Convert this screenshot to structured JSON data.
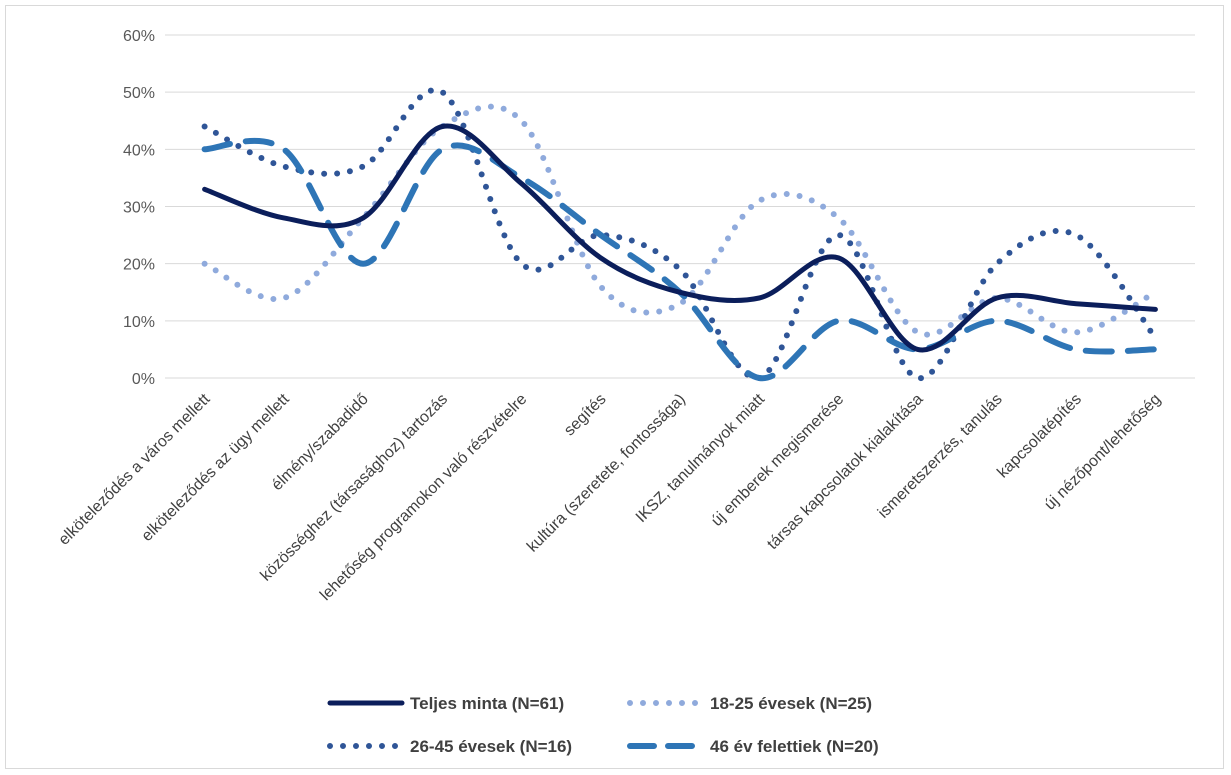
{
  "chart_data": {
    "type": "line",
    "title": "",
    "xlabel": "",
    "ylabel": "",
    "ylim": [
      0,
      60
    ],
    "y_tick_labels": [
      "0%",
      "10%",
      "20%",
      "30%",
      "40%",
      "50%",
      "60%"
    ],
    "grid": "horizontal",
    "legend_position": "bottom",
    "smoothed": true,
    "categories": [
      "elköteleződés a város mellett",
      "elköteleződés az ügy mellett",
      "élmény/szabadidő",
      "közösséghez (társasághoz) tartozás",
      "lehetőség programokon való részvételre",
      "segítés",
      "kultúra (szeretete, fontossága)",
      "IKSZ, tanulmányok miatt",
      "új emberek megismerése",
      "társas kapcsolatok kialakítása",
      "ismeretszerzés, tanulás",
      "kapcsolatépítés",
      "új nézőpont/lehetőség"
    ],
    "series": [
      {
        "name": "Teljes minta (N=61)",
        "values": [
          33,
          28,
          28,
          44,
          34,
          21,
          15,
          14,
          21,
          5,
          14,
          13,
          12
        ],
        "color": "#0b1e5b",
        "style": "solid"
      },
      {
        "name": "18-25 évesek (N=25)",
        "values": [
          20,
          14,
          28,
          44,
          45,
          16,
          13,
          31,
          28,
          8,
          14,
          8,
          15
        ],
        "color": "#8faadc",
        "style": "dotted"
      },
      {
        "name": "26-45 évesek (N=16)",
        "values": [
          44,
          37,
          37,
          50,
          20,
          25,
          19,
          0,
          25,
          0,
          20,
          25,
          7
        ],
        "color": "#2f5597",
        "style": "dotted"
      },
      {
        "name": "46 év felettiek (N=20)",
        "values": [
          40,
          40,
          20,
          40,
          35,
          25,
          15,
          0,
          10,
          5,
          10,
          5,
          5
        ],
        "color": "#2e75b6",
        "style": "dashed"
      }
    ]
  }
}
